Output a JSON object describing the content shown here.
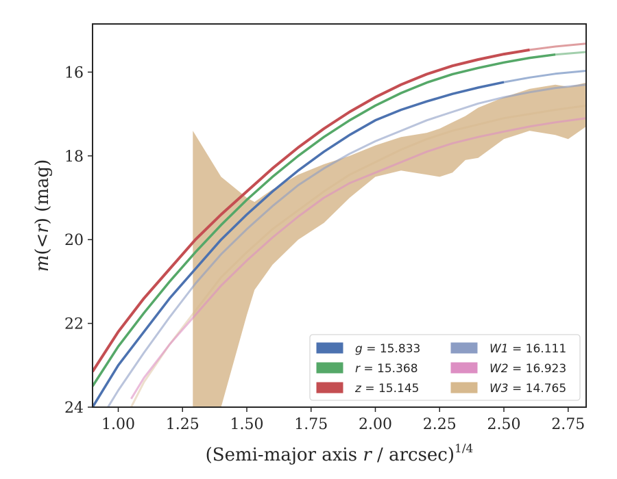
{
  "chart_data": {
    "type": "line",
    "title": "",
    "xlabel": "(Semi-major axis r / arcsec)",
    "xlabel_parts": {
      "pre": "(Semi-major axis ",
      "var": "r",
      "post": " / arcsec)",
      "sup": "1/4"
    },
    "ylabel": "m(< r) (mag)",
    "ylabel_parts": {
      "var1": "m",
      "mid": "(<",
      "var2": "r",
      "post": ") (mag)"
    },
    "xlim": [
      0.9,
      2.82
    ],
    "ylim": [
      24.0,
      14.85
    ],
    "y_inverted": true,
    "xticks": [
      "1.00",
      "1.25",
      "1.50",
      "1.75",
      "2.00",
      "2.25",
      "2.50",
      "2.75"
    ],
    "yticks": [
      "16",
      "18",
      "20",
      "22",
      "24"
    ],
    "grid": false,
    "legend_position": "lower right",
    "legend": [
      {
        "band": "g",
        "label": "= 15.833",
        "color": "#4c72b0"
      },
      {
        "band": "r",
        "label": "= 15.368",
        "color": "#55a868"
      },
      {
        "band": "z",
        "label": "= 15.145",
        "color": "#c44e52"
      },
      {
        "band": "W1",
        "label": "= 16.111",
        "color": "#8c9dc4"
      },
      {
        "band": "W2",
        "label": "= 16.923",
        "color": "#dd8fc3"
      },
      {
        "band": "W3",
        "label": "= 14.765",
        "color": "#d7b98e"
      }
    ],
    "series": [
      {
        "name": "g",
        "color": "#4c72b0",
        "x": [
          0.9,
          1.0,
          1.1,
          1.2,
          1.3,
          1.4,
          1.5,
          1.6,
          1.7,
          1.8,
          1.9,
          2.0,
          2.1,
          2.2,
          2.3,
          2.4,
          2.5,
          2.6,
          2.7,
          2.82
        ],
        "y": [
          24.0,
          23.0,
          22.2,
          21.4,
          20.7,
          20.0,
          19.4,
          18.85,
          18.35,
          17.9,
          17.5,
          17.15,
          16.9,
          16.7,
          16.52,
          16.37,
          16.24,
          16.13,
          16.04,
          15.97
        ],
        "solid_until": 2.52
      },
      {
        "name": "r",
        "color": "#55a868",
        "x": [
          0.9,
          1.0,
          1.1,
          1.2,
          1.3,
          1.4,
          1.5,
          1.6,
          1.7,
          1.8,
          1.9,
          2.0,
          2.1,
          2.2,
          2.3,
          2.4,
          2.5,
          2.6,
          2.7,
          2.82
        ],
        "y": [
          23.5,
          22.55,
          21.75,
          21.0,
          20.3,
          19.65,
          19.05,
          18.5,
          18.0,
          17.55,
          17.15,
          16.8,
          16.5,
          16.25,
          16.05,
          15.9,
          15.77,
          15.66,
          15.58,
          15.52
        ],
        "solid_until": 2.72
      },
      {
        "name": "z",
        "color": "#c44e52",
        "x": [
          0.9,
          1.0,
          1.1,
          1.2,
          1.3,
          1.4,
          1.5,
          1.6,
          1.7,
          1.8,
          1.9,
          2.0,
          2.1,
          2.2,
          2.3,
          2.4,
          2.5,
          2.6,
          2.7,
          2.82
        ],
        "y": [
          23.15,
          22.2,
          21.4,
          20.7,
          20.0,
          19.4,
          18.85,
          18.3,
          17.8,
          17.35,
          16.95,
          16.6,
          16.3,
          16.05,
          15.85,
          15.7,
          15.57,
          15.47,
          15.39,
          15.32
        ],
        "solid_until": 2.6
      },
      {
        "name": "W1",
        "color": "#8c9dc4",
        "x": [
          0.9,
          1.0,
          1.1,
          1.2,
          1.3,
          1.4,
          1.5,
          1.6,
          1.7,
          1.8,
          1.9,
          2.0,
          2.1,
          2.2,
          2.3,
          2.4,
          2.5,
          2.6,
          2.7,
          2.82
        ],
        "y": [
          24.6,
          23.6,
          22.7,
          21.85,
          21.05,
          20.35,
          19.75,
          19.2,
          18.7,
          18.3,
          17.95,
          17.65,
          17.4,
          17.15,
          16.95,
          16.75,
          16.6,
          16.48,
          16.38,
          16.3
        ],
        "solid_until": 0
      },
      {
        "name": "W2",
        "color": "#dd8fc3",
        "x": [
          1.05,
          1.1,
          1.2,
          1.3,
          1.4,
          1.5,
          1.6,
          1.7,
          1.8,
          1.9,
          2.0,
          2.1,
          2.2,
          2.3,
          2.4,
          2.5,
          2.6,
          2.7,
          2.82
        ],
        "y": [
          23.8,
          23.3,
          22.5,
          21.8,
          21.1,
          20.5,
          19.95,
          19.45,
          19.0,
          18.65,
          18.4,
          18.15,
          17.9,
          17.7,
          17.55,
          17.42,
          17.3,
          17.2,
          17.1
        ],
        "solid_until": 0
      },
      {
        "name": "W3",
        "color": "#d7b98e",
        "x": [
          1.05,
          1.1,
          1.2,
          1.3,
          1.4,
          1.5,
          1.6,
          1.7,
          1.8,
          1.9,
          2.0,
          2.1,
          2.2,
          2.3,
          2.4,
          2.5,
          2.6,
          2.7,
          2.82
        ],
        "y": [
          24.0,
          23.4,
          22.5,
          21.7,
          20.9,
          20.3,
          19.75,
          19.3,
          18.85,
          18.45,
          18.15,
          17.85,
          17.6,
          17.4,
          17.25,
          17.1,
          17.0,
          16.9,
          16.8
        ],
        "band_x": [
          1.29,
          1.4,
          1.5,
          1.53,
          1.6,
          1.7,
          1.8,
          1.9,
          2.0,
          2.1,
          2.2,
          2.25,
          2.3,
          2.35,
          2.4,
          2.5,
          2.6,
          2.7,
          2.75,
          2.82
        ],
        "band_upper": [
          17.4,
          18.5,
          19.0,
          19.1,
          18.8,
          18.45,
          18.2,
          18.0,
          17.75,
          17.55,
          17.45,
          17.35,
          17.2,
          17.05,
          16.85,
          16.6,
          16.4,
          16.3,
          16.35,
          16.25
        ],
        "band_lower": [
          24.0,
          24.0,
          21.8,
          21.2,
          20.6,
          20.0,
          19.6,
          19.0,
          18.5,
          18.35,
          18.45,
          18.5,
          18.4,
          18.1,
          18.05,
          17.6,
          17.4,
          17.5,
          17.6,
          17.3
        ]
      }
    ]
  }
}
